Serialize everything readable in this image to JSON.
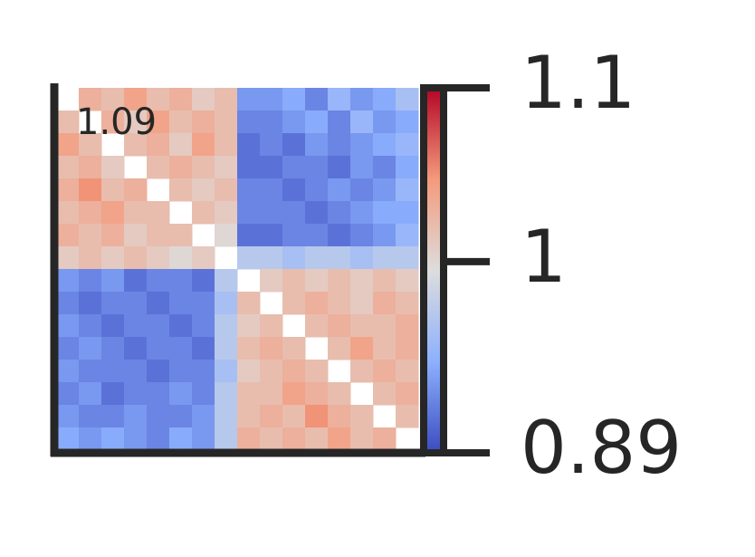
{
  "chart_data": {
    "type": "heatmap",
    "annotation": "1.09",
    "matrix": [
      [
        null,
        1.03,
        1.02,
        1.04,
        1.02,
        1.03,
        1.01,
        1.02,
        0.93,
        0.93,
        0.94,
        0.92,
        0.95,
        0.93,
        0.94,
        0.96
      ],
      [
        1.02,
        null,
        1.03,
        1.01,
        1.04,
        1.02,
        1.03,
        1.02,
        0.92,
        0.92,
        0.93,
        0.94,
        0.92,
        0.95,
        0.93,
        0.94
      ],
      [
        1.04,
        1.02,
        null,
        1.02,
        1.03,
        1.01,
        1.04,
        1.02,
        0.91,
        0.92,
        0.91,
        0.93,
        0.92,
        0.93,
        0.94,
        0.95
      ],
      [
        1.02,
        1.03,
        1.01,
        null,
        1.02,
        1.03,
        1.02,
        1.01,
        0.91,
        0.91,
        0.92,
        0.92,
        0.91,
        0.93,
        0.92,
        0.94
      ],
      [
        1.03,
        1.05,
        1.02,
        1.03,
        null,
        1.02,
        1.01,
        1.02,
        0.92,
        0.92,
        0.91,
        0.92,
        0.93,
        0.92,
        0.93,
        0.95
      ],
      [
        1.02,
        1.03,
        1.04,
        1.02,
        1.02,
        null,
        1.02,
        1.01,
        0.92,
        0.92,
        0.92,
        0.91,
        0.92,
        0.93,
        0.94,
        0.94
      ],
      [
        1.03,
        1.02,
        1.03,
        1.01,
        1.02,
        1.02,
        null,
        1.0,
        0.91,
        0.91,
        0.92,
        0.92,
        0.91,
        0.92,
        0.93,
        0.95
      ],
      [
        1.01,
        1.02,
        1.01,
        1.02,
        1.01,
        1.0,
        1.01,
        null,
        0.97,
        0.97,
        0.96,
        0.97,
        0.97,
        0.96,
        0.97,
        0.97
      ],
      [
        0.93,
        0.92,
        0.93,
        0.91,
        0.92,
        0.92,
        0.91,
        0.97,
        null,
        1.01,
        1.02,
        1.01,
        1.02,
        1.01,
        1.02,
        1.01
      ],
      [
        0.92,
        0.91,
        0.92,
        0.92,
        0.91,
        0.92,
        0.92,
        0.96,
        1.02,
        null,
        1.02,
        1.03,
        1.02,
        1.01,
        1.03,
        1.02
      ],
      [
        0.93,
        0.92,
        0.91,
        0.92,
        0.92,
        0.91,
        0.92,
        0.97,
        1.01,
        1.02,
        null,
        1.02,
        1.03,
        1.02,
        1.02,
        1.03
      ],
      [
        0.92,
        0.93,
        0.92,
        0.91,
        0.92,
        0.92,
        0.91,
        0.97,
        1.02,
        1.03,
        1.02,
        null,
        1.02,
        1.04,
        1.02,
        1.03
      ],
      [
        0.93,
        0.92,
        0.92,
        0.92,
        0.91,
        0.92,
        0.92,
        0.96,
        1.01,
        1.02,
        1.03,
        1.02,
        null,
        1.02,
        1.03,
        1.02
      ],
      [
        0.92,
        0.93,
        0.91,
        0.92,
        0.92,
        0.93,
        0.92,
        0.97,
        1.02,
        1.02,
        1.04,
        1.03,
        1.02,
        null,
        1.02,
        1.03
      ],
      [
        0.93,
        0.92,
        0.92,
        0.93,
        0.92,
        0.92,
        0.93,
        0.97,
        1.02,
        1.03,
        1.02,
        1.05,
        1.03,
        1.02,
        null,
        1.02
      ],
      [
        0.94,
        0.93,
        0.94,
        0.93,
        0.92,
        0.94,
        0.93,
        0.97,
        1.03,
        1.02,
        1.03,
        1.02,
        1.04,
        1.02,
        1.03,
        null
      ]
    ],
    "colormap": [
      "#3b4cc0",
      "#8db0fe",
      "#dddddd",
      "#f49a7b",
      "#b40426"
    ],
    "colorbar": {
      "lim": [
        0.89,
        1.1
      ],
      "ticks": [
        0.89,
        1,
        1.1
      ]
    }
  }
}
